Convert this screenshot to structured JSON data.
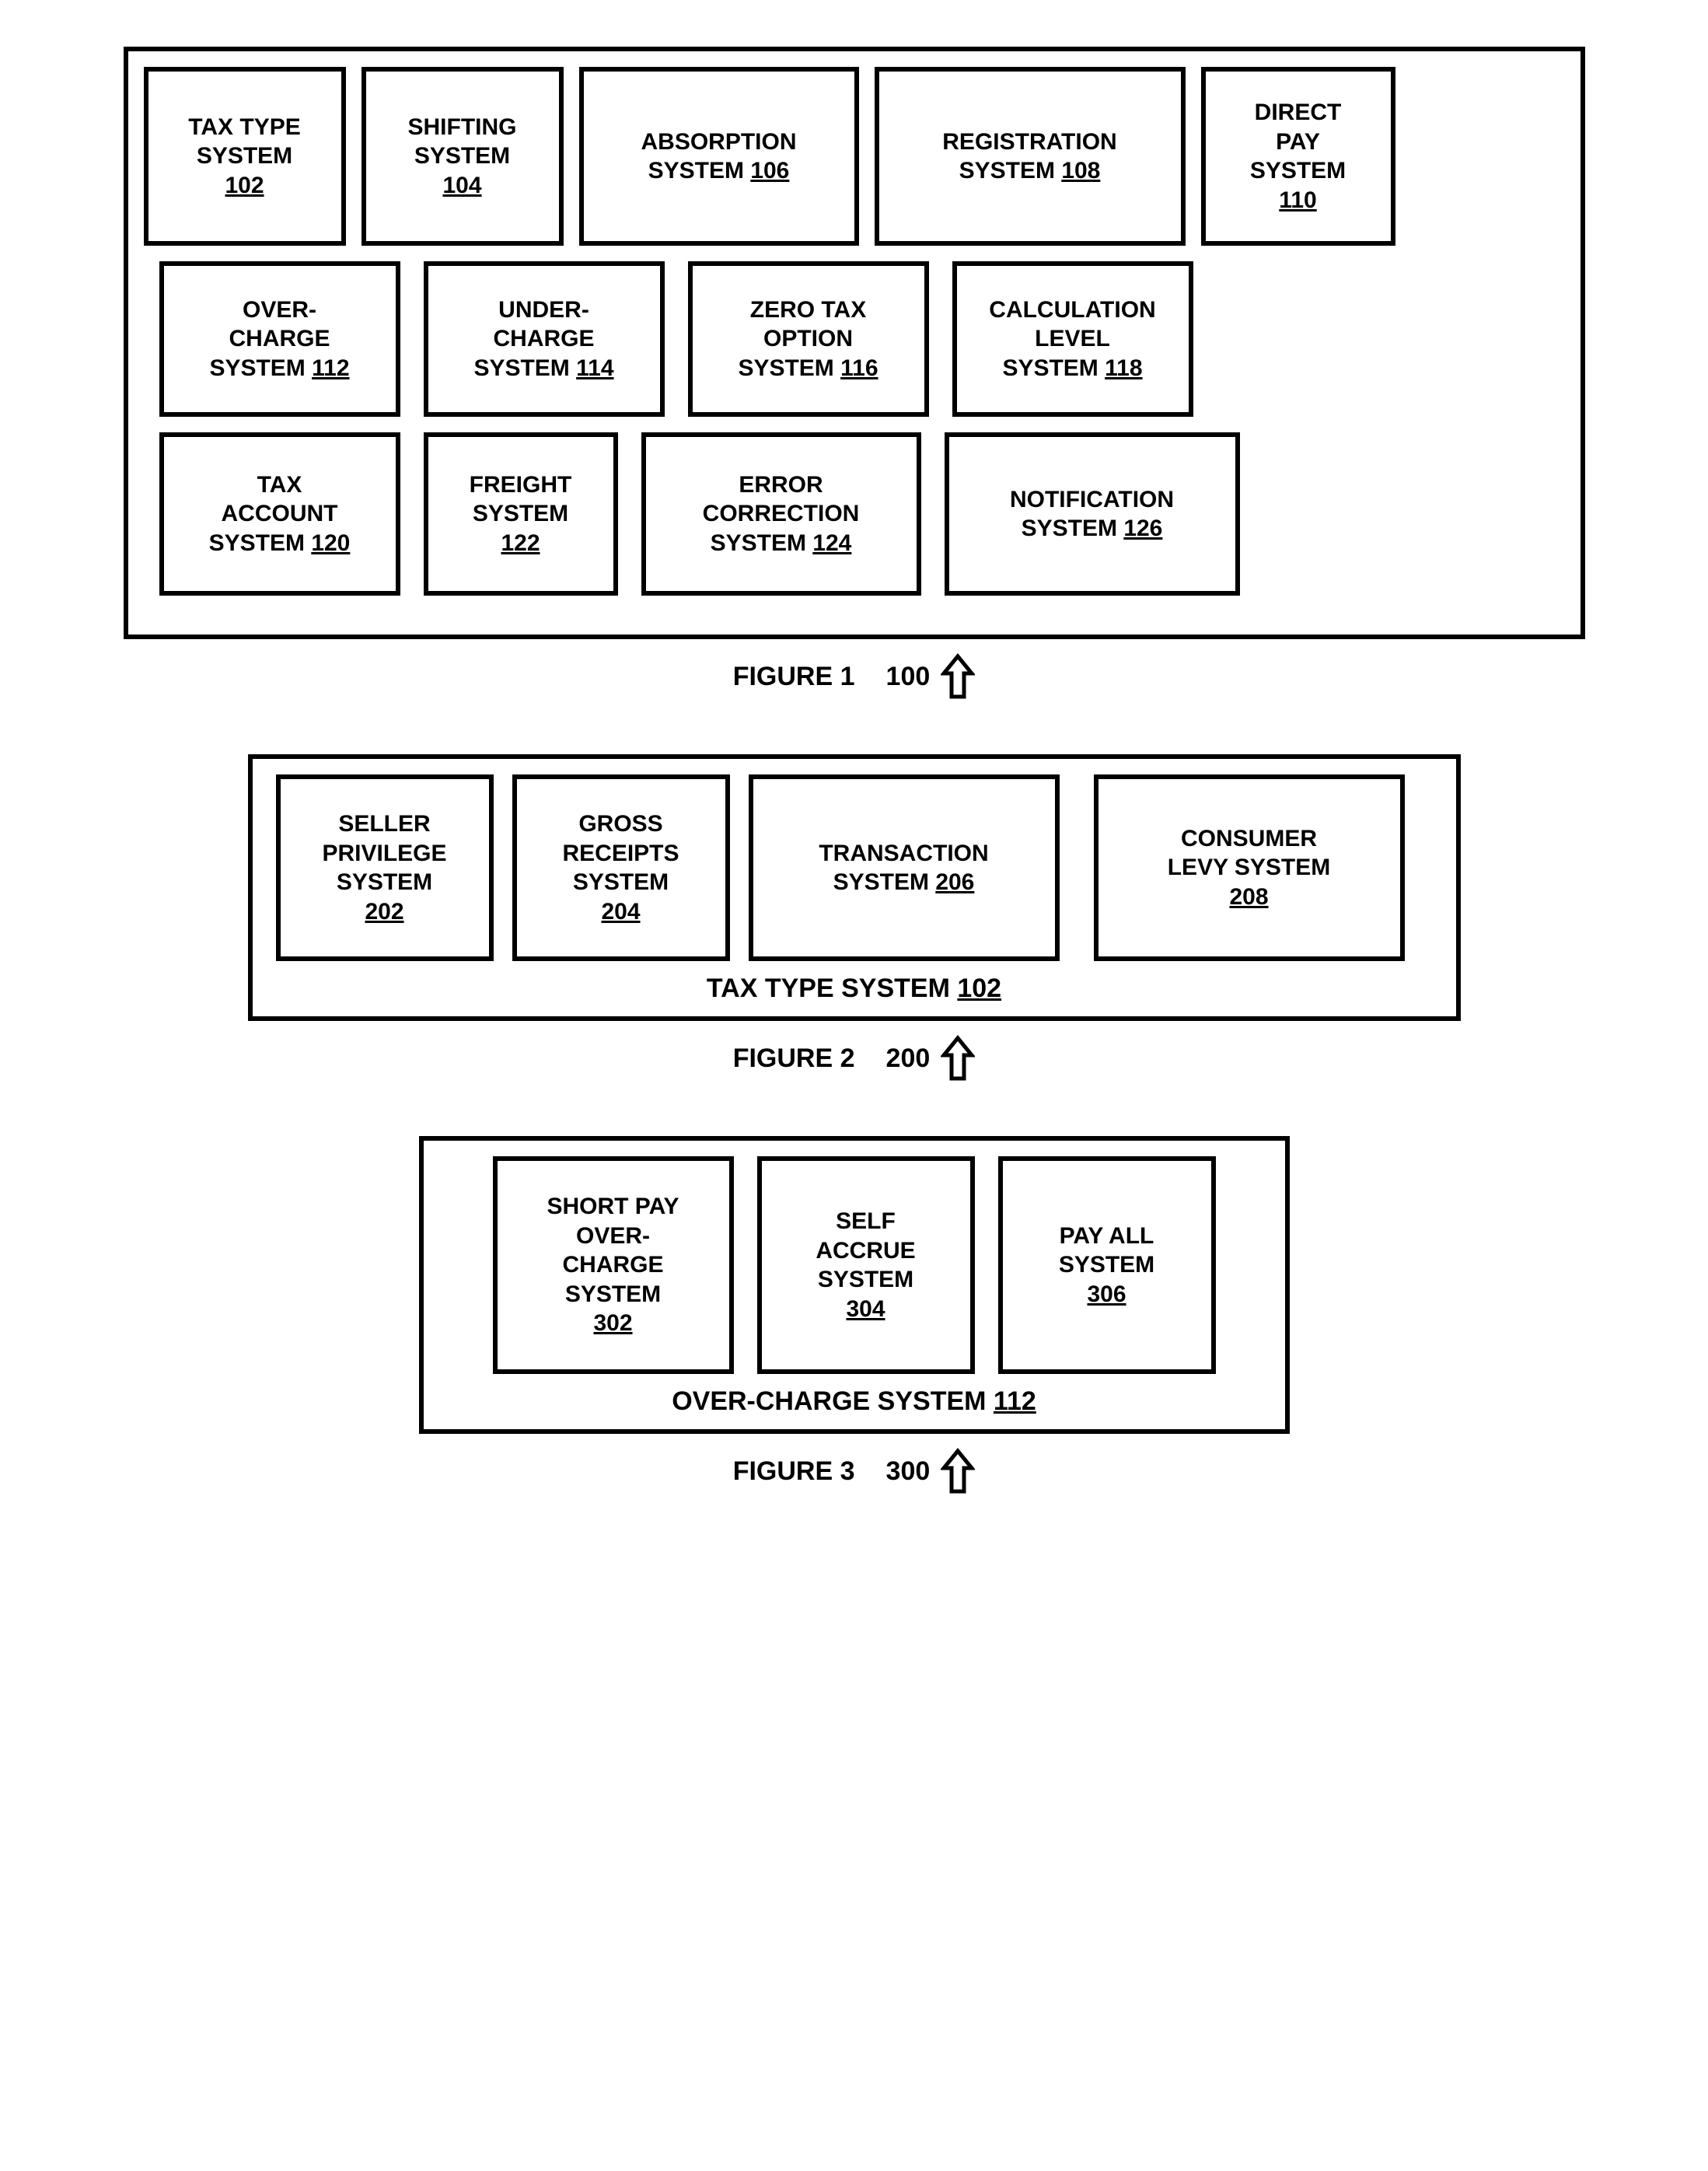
{
  "fig1": {
    "caption_label": "FIGURE 1",
    "caption_num": "100",
    "border_color": "#000000",
    "background_color": "#ffffff",
    "font_size": 30,
    "row1": [
      {
        "lines": [
          "TAX TYPE",
          "SYSTEM"
        ],
        "ref": "102",
        "ref_inline": false
      },
      {
        "lines": [
          "SHIFTING",
          "SYSTEM"
        ],
        "ref": "104",
        "ref_inline": false
      },
      {
        "lines": [
          "ABSORPTION"
        ],
        "last_line_prefix": "SYSTEM ",
        "ref": "106",
        "ref_inline": true
      },
      {
        "lines": [
          "REGISTRATION"
        ],
        "last_line_prefix": "SYSTEM ",
        "ref": "108",
        "ref_inline": true
      },
      {
        "lines": [
          "DIRECT",
          "PAY",
          "SYSTEM"
        ],
        "ref": "110",
        "ref_inline": false
      }
    ],
    "row2": [
      {
        "lines": [
          "OVER-",
          "CHARGE"
        ],
        "last_line_prefix": "SYSTEM ",
        "ref": "112",
        "ref_inline": true
      },
      {
        "lines": [
          "UNDER-",
          "CHARGE"
        ],
        "last_line_prefix": "SYSTEM ",
        "ref": "114",
        "ref_inline": true
      },
      {
        "lines": [
          "ZERO TAX",
          "OPTION"
        ],
        "last_line_prefix": "SYSTEM ",
        "ref": "116",
        "ref_inline": true
      },
      {
        "lines": [
          "CALCULATION",
          "LEVEL"
        ],
        "last_line_prefix": "SYSTEM ",
        "ref": "118",
        "ref_inline": true
      }
    ],
    "row3": [
      {
        "lines": [
          "TAX",
          "ACCOUNT"
        ],
        "last_line_prefix": "SYSTEM ",
        "ref": "120",
        "ref_inline": true
      },
      {
        "lines": [
          "FREIGHT",
          "SYSTEM"
        ],
        "ref": "122",
        "ref_inline": false
      },
      {
        "lines": [
          "ERROR",
          "CORRECTION"
        ],
        "last_line_prefix": "SYSTEM ",
        "ref": "124",
        "ref_inline": true
      },
      {
        "lines": [
          "NOTIFICATION"
        ],
        "last_line_prefix": "SYSTEM ",
        "ref": "126",
        "ref_inline": true
      }
    ]
  },
  "fig2": {
    "caption_label": "FIGURE 2",
    "caption_num": "200",
    "subtitle_prefix": "TAX TYPE SYSTEM ",
    "subtitle_ref": "102",
    "boxes": [
      {
        "lines": [
          "SELLER",
          "PRIVILEGE",
          "SYSTEM"
        ],
        "ref": "202",
        "ref_inline": false
      },
      {
        "lines": [
          "GROSS",
          "RECEIPTS",
          "SYSTEM"
        ],
        "ref": "204",
        "ref_inline": false
      },
      {
        "lines": [
          "TRANSACTION"
        ],
        "last_line_prefix": "SYSTEM ",
        "ref": "206",
        "ref_inline": true
      },
      {
        "lines": [
          "CONSUMER",
          "LEVY SYSTEM"
        ],
        "ref": "208",
        "ref_inline": false
      }
    ]
  },
  "fig3": {
    "caption_label": "FIGURE 3",
    "caption_num": "300",
    "subtitle_prefix": "OVER-CHARGE SYSTEM ",
    "subtitle_ref": "112",
    "boxes": [
      {
        "lines": [
          "SHORT PAY",
          "OVER-",
          "CHARGE",
          "SYSTEM"
        ],
        "ref": "302",
        "ref_inline": false
      },
      {
        "lines": [
          "SELF",
          "ACCRUE",
          "SYSTEM"
        ],
        "ref": "304",
        "ref_inline": false
      },
      {
        "lines": [
          "PAY ALL",
          "SYSTEM"
        ],
        "ref": "306",
        "ref_inline": false
      }
    ]
  },
  "arrow": {
    "stroke_color": "#000000",
    "fill_color": "#ffffff",
    "stroke_width": 5
  }
}
